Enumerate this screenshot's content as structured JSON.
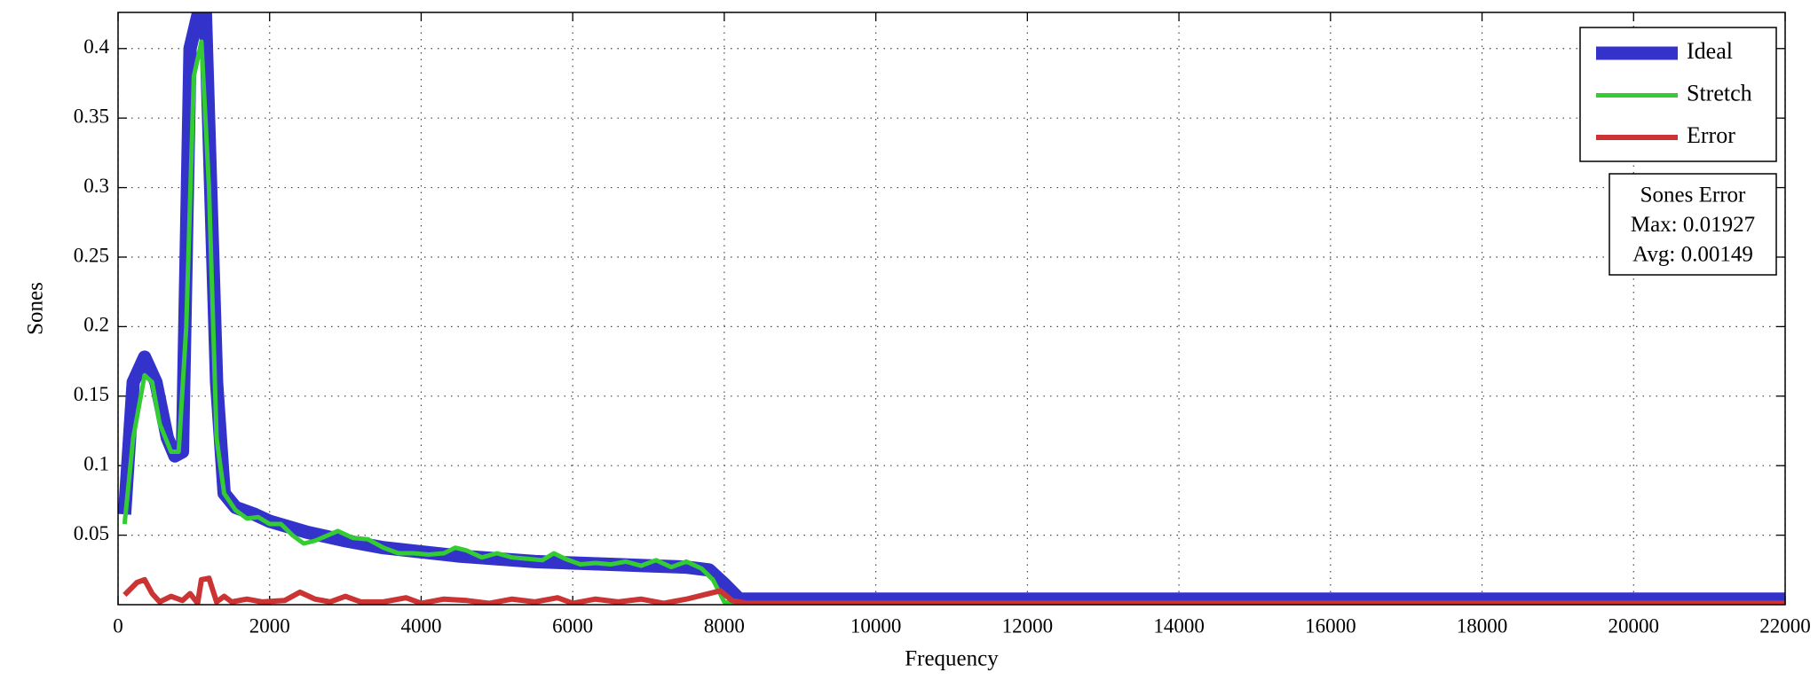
{
  "chart_data": {
    "type": "line",
    "xlabel": "Frequency",
    "ylabel": "Sones",
    "xlim": [
      0,
      22000
    ],
    "ylim": [
      0,
      0.426
    ],
    "xticks": [
      0,
      2000,
      4000,
      6000,
      8000,
      10000,
      12000,
      14000,
      16000,
      18000,
      20000,
      22000
    ],
    "yticks": [
      0.05,
      0.1,
      0.15,
      0.2,
      0.25,
      0.3,
      0.35,
      0.4
    ],
    "grid": true,
    "legend": "upper right",
    "annotations": [
      "Sones Error",
      "Max: 0.01927",
      "Avg: 0.00149"
    ],
    "series": [
      {
        "name": "Ideal",
        "color": "#3333cc",
        "width": 15,
        "x": [
          86,
          200,
          350,
          500,
          650,
          750,
          850,
          950,
          1080,
          1150,
          1300,
          1400,
          1550,
          1800,
          2000,
          2500,
          3000,
          3500,
          4000,
          4500,
          5000,
          5500,
          6000,
          6500,
          7000,
          7500,
          7800,
          8000,
          8200,
          22000
        ],
        "values": [
          0.065,
          0.16,
          0.178,
          0.16,
          0.12,
          0.107,
          0.11,
          0.4,
          0.43,
          0.43,
          0.16,
          0.08,
          0.07,
          0.065,
          0.06,
          0.052,
          0.046,
          0.041,
          0.038,
          0.035,
          0.033,
          0.031,
          0.03,
          0.029,
          0.028,
          0.027,
          0.025,
          0.015,
          0.004,
          0.004
        ]
      },
      {
        "name": "Stretch",
        "color": "#33cc33",
        "width": 5,
        "x": [
          86,
          200,
          350,
          450,
          550,
          700,
          800,
          900,
          1000,
          1100,
          1200,
          1300,
          1400,
          1550,
          1700,
          1850,
          2000,
          2150,
          2300,
          2450,
          2600,
          2900,
          3100,
          3300,
          3500,
          3700,
          3900,
          4100,
          4300,
          4450,
          4600,
          4800,
          5000,
          5200,
          5400,
          5600,
          5750,
          5900,
          6100,
          6300,
          6500,
          6700,
          6900,
          7100,
          7300,
          7500,
          7700,
          7850,
          8000,
          8200,
          22000
        ],
        "values": [
          0.058,
          0.12,
          0.165,
          0.16,
          0.13,
          0.11,
          0.11,
          0.2,
          0.38,
          0.405,
          0.3,
          0.12,
          0.08,
          0.068,
          0.062,
          0.063,
          0.058,
          0.058,
          0.05,
          0.044,
          0.046,
          0.053,
          0.048,
          0.047,
          0.041,
          0.037,
          0.037,
          0.036,
          0.037,
          0.041,
          0.039,
          0.034,
          0.037,
          0.034,
          0.033,
          0.032,
          0.037,
          0.033,
          0.029,
          0.03,
          0.029,
          0.031,
          0.028,
          0.032,
          0.027,
          0.031,
          0.026,
          0.018,
          0.002,
          0.001,
          0.001
        ]
      },
      {
        "name": "Error",
        "color": "#cc3333",
        "width": 6,
        "x": [
          86,
          250,
          350,
          450,
          550,
          700,
          850,
          950,
          1050,
          1100,
          1200,
          1300,
          1400,
          1500,
          1700,
          1900,
          2200,
          2400,
          2600,
          2800,
          3000,
          3200,
          3500,
          3800,
          4000,
          4300,
          4600,
          4900,
          5200,
          5500,
          5800,
          6000,
          6300,
          6600,
          6900,
          7200,
          7500,
          7800,
          7950,
          8100,
          8300,
          22000
        ],
        "values": [
          0.007,
          0.016,
          0.018,
          0.008,
          0.002,
          0.006,
          0.003,
          0.008,
          0.001,
          0.018,
          0.019,
          0.002,
          0.006,
          0.002,
          0.004,
          0.002,
          0.003,
          0.009,
          0.004,
          0.002,
          0.006,
          0.002,
          0.002,
          0.005,
          0.001,
          0.004,
          0.003,
          0.001,
          0.004,
          0.002,
          0.005,
          0.001,
          0.004,
          0.002,
          0.004,
          0.001,
          0.004,
          0.008,
          0.01,
          0.003,
          0.001,
          0.001
        ]
      }
    ]
  }
}
